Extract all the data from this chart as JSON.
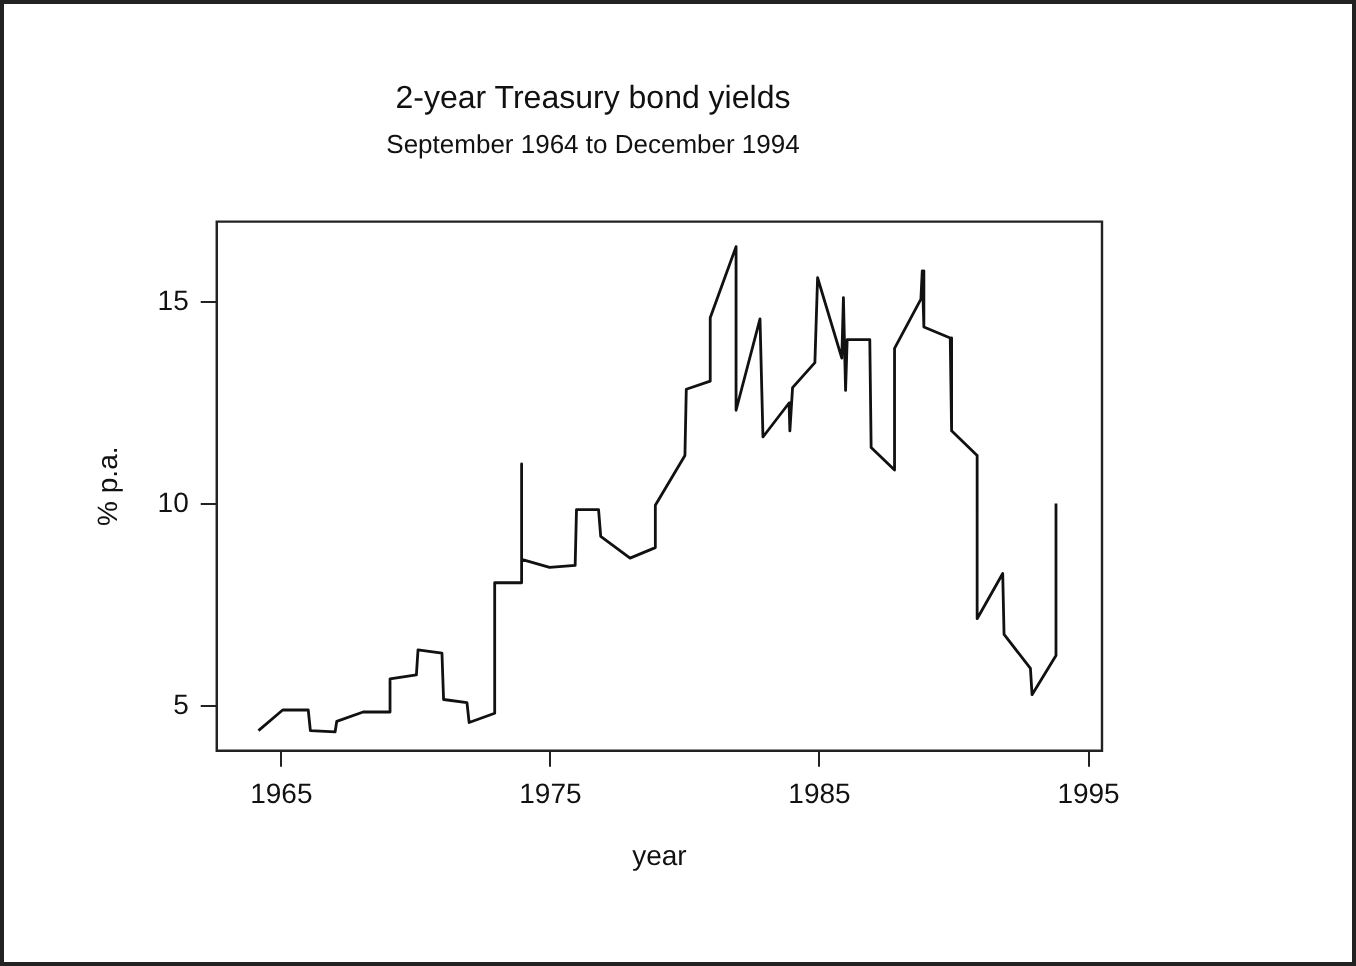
{
  "chart_data": {
    "type": "line",
    "title": "2-year Treasury bond yields",
    "subtitle": "September 1964 to December 1994",
    "xlabel": "year",
    "ylabel": "% p.a.",
    "xlim": [
      1962.6,
      1995.5
    ],
    "xticks": [
      1965,
      1975,
      1985,
      1995
    ],
    "ylim": [
      3.9,
      17
    ],
    "yticks": [
      5,
      10,
      15
    ],
    "grid": false,
    "legend": false,
    "marker": "none",
    "line_style": "solid",
    "series": [
      {
        "color": "#111111",
        "x": [
          1964.15,
          1965.05,
          1966.0,
          1966.08,
          1967.0,
          1967.06,
          1968.04,
          1969.04,
          1969.04,
          1970.02,
          1970.08,
          1970.97,
          1971.03,
          1971.9,
          1971.98,
          1972.93,
          1972.93,
          1973.88,
          1973.93,
          1973.93,
          1974.97,
          1975.92,
          1975.97,
          1976.79,
          1976.87,
          1977.96,
          1978.9,
          1978.9,
          1980.0,
          1980.05,
          1980.94,
          1980.94,
          1981.9,
          1981.9,
          1982.79,
          1982.9,
          1983.87,
          1983.9,
          1984.0,
          1984.83,
          1984.93,
          1985.83,
          1985.89,
          1985.97,
          1986.03,
          1986.87,
          1986.92,
          1987.79,
          1987.79,
          1988.77,
          1988.82,
          1988.88,
          1989.86,
          1989.91,
          1990.86,
          1990.86,
          1991.81,
          1991.86,
          1992.84,
          1992.9,
          1993.79,
          1993.79
        ],
        "values": [
          4.4,
          4.91,
          4.91,
          4.4,
          4.37,
          4.63,
          4.86,
          4.86,
          5.68,
          5.78,
          6.4,
          6.32,
          5.17,
          5.09,
          4.6,
          4.83,
          8.06,
          8.06,
          11.0,
          8.64,
          8.44,
          8.49,
          9.87,
          9.87,
          9.21,
          8.67,
          8.93,
          9.98,
          11.21,
          12.85,
          13.05,
          14.62,
          16.38,
          12.33,
          14.59,
          11.67,
          12.51,
          11.82,
          12.89,
          13.51,
          15.61,
          13.62,
          15.12,
          12.82,
          14.08,
          14.08,
          11.41,
          10.85,
          13.86,
          15.08,
          15.78,
          14.39,
          14.12,
          11.82,
          11.21,
          7.17,
          8.29,
          6.78,
          5.94,
          5.29,
          6.26,
          10.02
        ]
      }
    ]
  }
}
